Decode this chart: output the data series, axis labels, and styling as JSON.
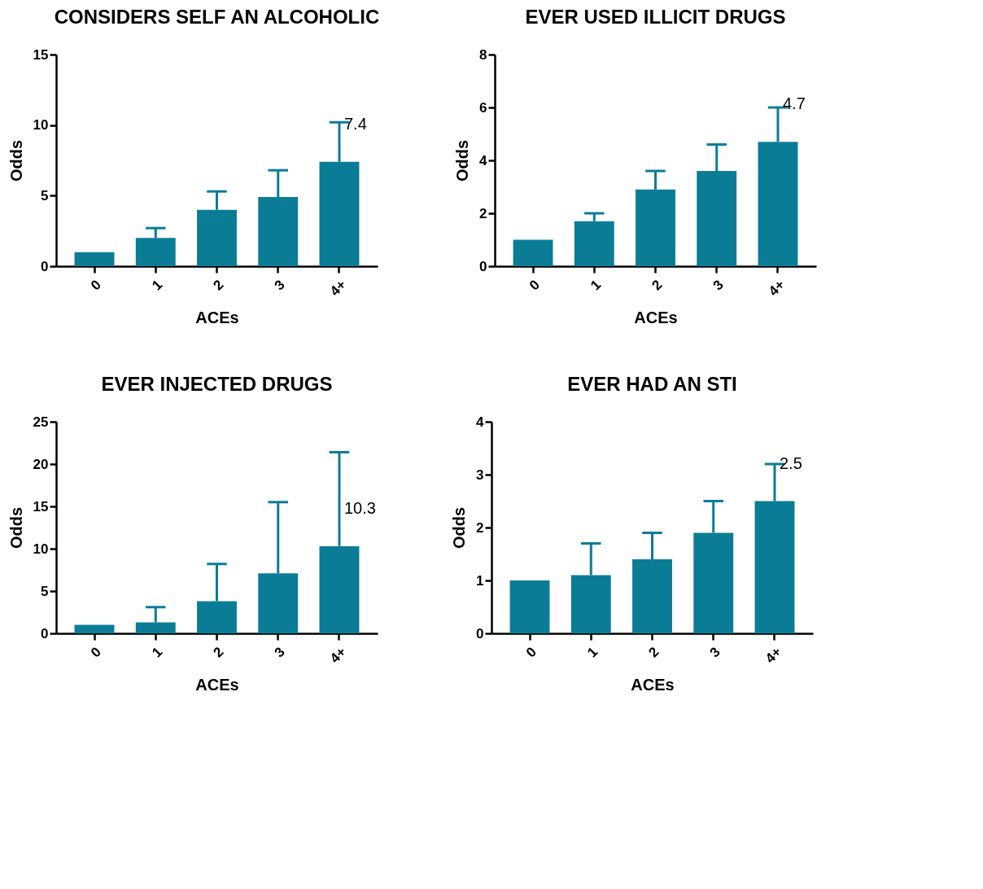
{
  "chart_data": [
    {
      "type": "bar",
      "title": "CONSIDERS SELF AN ALCOHOLIC",
      "xlabel": "ACEs",
      "ylabel": "Odds",
      "categories": [
        "0",
        "1",
        "2",
        "3",
        "4+"
      ],
      "values": [
        1,
        2.0,
        4.0,
        4.9,
        7.4
      ],
      "errors": [
        null,
        [
          2.0,
          2.7
        ],
        [
          4.0,
          5.3
        ],
        [
          4.9,
          6.8
        ],
        [
          7.4,
          10.2
        ]
      ],
      "value_labels": [
        null,
        null,
        null,
        null,
        "7.4"
      ],
      "color": "#0b7c96",
      "ylim": [
        0,
        15
      ],
      "yticks": [
        0,
        5,
        10,
        15
      ]
    },
    {
      "type": "bar",
      "title": "EVER USED ILLICIT DRUGS",
      "xlabel": "ACEs",
      "ylabel": "Odds",
      "categories": [
        "0",
        "1",
        "2",
        "3",
        "4+"
      ],
      "values": [
        1,
        1.7,
        2.9,
        3.6,
        4.7
      ],
      "errors": [
        null,
        [
          1.7,
          2.0
        ],
        [
          2.9,
          3.6
        ],
        [
          3.6,
          4.6
        ],
        [
          4.7,
          6.0
        ]
      ],
      "value_labels": [
        null,
        null,
        null,
        null,
        "4.7"
      ],
      "color": "#0b7c96",
      "ylim": [
        0,
        8
      ],
      "yticks": [
        0,
        2,
        4,
        6,
        8
      ]
    },
    {
      "type": "bar",
      "title": "EVER INJECTED DRUGS",
      "xlabel": "ACEs",
      "ylabel": "Odds",
      "categories": [
        "0",
        "1",
        "2",
        "3",
        "4+"
      ],
      "values": [
        1,
        1.3,
        3.8,
        7.1,
        10.3
      ],
      "errors": [
        null,
        [
          1.3,
          3.1
        ],
        [
          3.8,
          8.2
        ],
        [
          7.1,
          15.5
        ],
        [
          10.3,
          21.4
        ]
      ],
      "value_labels": [
        null,
        null,
        null,
        null,
        "10.3"
      ],
      "color": "#0b7c96",
      "ylim": [
        0,
        25
      ],
      "yticks": [
        0,
        5,
        10,
        15,
        20,
        25
      ]
    },
    {
      "type": "bar",
      "title": "EVER HAD AN STI",
      "xlabel": "ACEs",
      "ylabel": "Odds",
      "categories": [
        "0",
        "1",
        "2",
        "3",
        "4+"
      ],
      "values": [
        1,
        1.1,
        1.4,
        1.9,
        2.5
      ],
      "errors": [
        null,
        [
          1.1,
          1.7
        ],
        [
          1.4,
          1.9
        ],
        [
          1.9,
          2.5
        ],
        [
          2.5,
          3.2
        ]
      ],
      "value_labels": [
        null,
        null,
        null,
        null,
        "2.5"
      ],
      "color": "#0b7c96",
      "ylim": [
        0,
        4
      ],
      "yticks": [
        0,
        1,
        2,
        3,
        4
      ]
    }
  ]
}
